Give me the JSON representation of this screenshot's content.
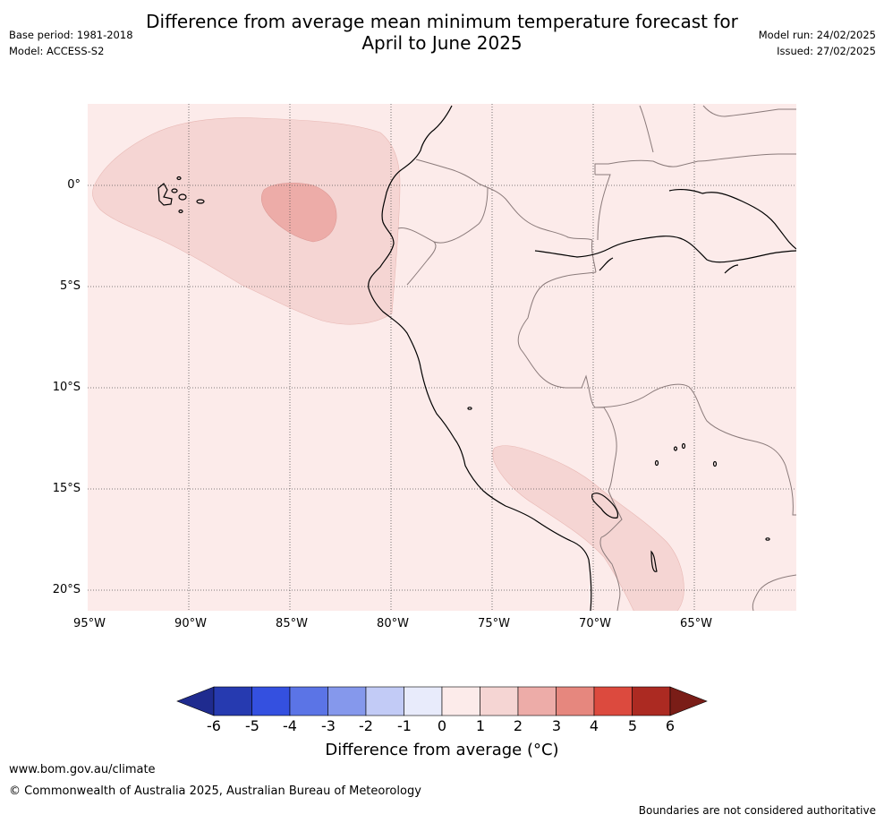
{
  "title": {
    "line1": "Difference from average mean minimum temperature forecast for",
    "line2": "April to June 2025"
  },
  "meta_left": {
    "base_period": "Base period: 1981-2018",
    "model": "Model: ACCESS-S2"
  },
  "meta_right": {
    "model_run": "Model run: 24/02/2025",
    "issued": "Issued: 27/02/2025"
  },
  "map": {
    "lat_labels": [
      "0°",
      "5°S",
      "10°S",
      "15°S",
      "20°S"
    ],
    "lon_labels": [
      "95°W",
      "90°W",
      "85°W",
      "80°W",
      "75°W",
      "70°W",
      "65°W"
    ],
    "background_anomaly_class": "0 to 1",
    "regions": [
      {
        "name": "equatorial-pacific-warm-area",
        "anomaly_class": "1 to 2"
      },
      {
        "name": "pacific-core-warm-area",
        "anomaly_class": "2 to 3"
      },
      {
        "name": "southern-andes-warm-area",
        "anomaly_class": "1 to 2"
      }
    ]
  },
  "colorbar": {
    "ticks": [
      "-6",
      "-5",
      "-4",
      "-3",
      "-2",
      "-1",
      "0",
      "1",
      "2",
      "3",
      "4",
      "5",
      "6"
    ],
    "colors": [
      "#1f2b8f",
      "#263ab0",
      "#3450e0",
      "#5b74e6",
      "#8598ec",
      "#c2cbf6",
      "#e8ebfb",
      "#fcebea",
      "#f5d5d3",
      "#edaca8",
      "#e6877e",
      "#dc4a3e",
      "#ac2a22",
      "#7a1d17"
    ],
    "label": "Difference from average (°C)"
  },
  "footer": {
    "url": "www.bom.gov.au/climate",
    "copyright": "© Commonwealth of Australia 2025, Australian Bureau of Meteorology",
    "note": "Boundaries are not considered authoritative"
  }
}
